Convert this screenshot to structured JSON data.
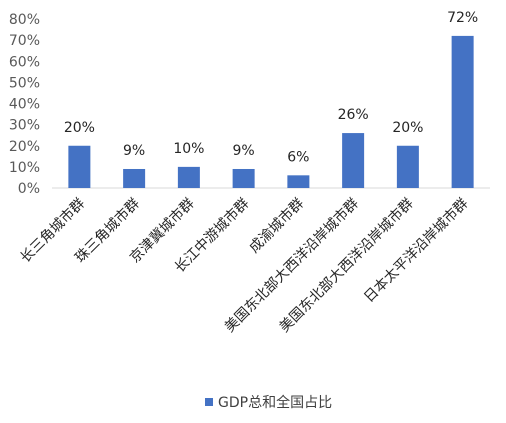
{
  "chart_data": {
    "type": "bar",
    "categories": [
      "长三角城市群",
      "珠三角城市群",
      "京津冀城市群",
      "长江中游城市群",
      "成渝城市群",
      "美国东北部大西洋沿岸城市群",
      "美国东北部大西洋沿岸城市群",
      "日本太平洋沿岸城市群"
    ],
    "series": [
      {
        "name": "GDP总和全国占比",
        "values": [
          20,
          9,
          10,
          9,
          6,
          26,
          20,
          72
        ],
        "color": "#4472C4"
      }
    ],
    "data_labels": [
      "20%",
      "9%",
      "10%",
      "9%",
      "6%",
      "26%",
      "20%",
      "72%"
    ],
    "y_ticks": [
      "0%",
      "10%",
      "20%",
      "30%",
      "40%",
      "50%",
      "60%",
      "70%",
      "80%"
    ],
    "ylim": [
      0,
      80
    ],
    "legend": {
      "position": "bottom"
    },
    "grid": false,
    "axis_color": "#D9D9D9"
  }
}
